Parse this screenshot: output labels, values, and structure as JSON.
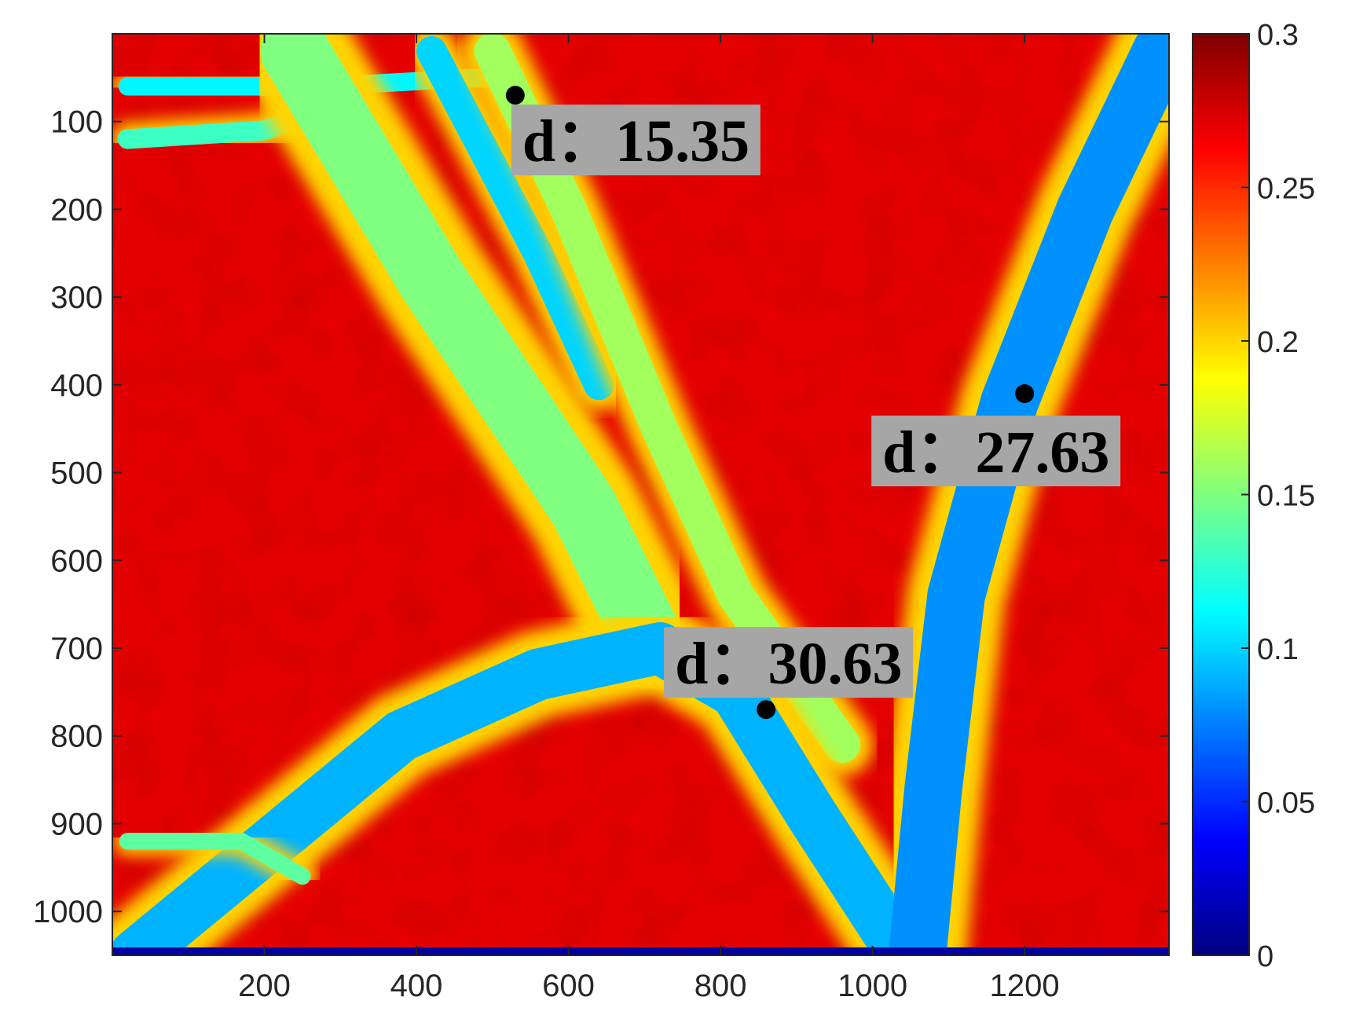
{
  "chart_data": {
    "type": "heatmap",
    "x_ticks": [
      200,
      400,
      600,
      800,
      1000,
      1200
    ],
    "y_ticks": [
      100,
      200,
      300,
      400,
      500,
      600,
      700,
      800,
      900,
      1000
    ],
    "xlim": [
      0,
      1390
    ],
    "ylim": [
      1050,
      0
    ],
    "y_axis_direction": "reversed (top to bottom)",
    "colormap": "jet",
    "colorbar": {
      "range": [
        0,
        0.3
      ],
      "ticks": [
        "0",
        "0.05",
        "0.1",
        "0.15",
        "0.2",
        "0.25",
        "0.3"
      ],
      "tick_values": [
        0,
        0.05,
        0.1,
        0.15,
        0.2,
        0.25,
        0.3
      ],
      "placement": "right"
    },
    "background_value_approx": 0.27,
    "channel_value_approx": 0.1,
    "channels": [
      {
        "points": [
          [
            20,
            60
          ],
          [
            280,
            60
          ],
          [
            480,
            50
          ]
        ],
        "width": 24,
        "value": 0.11
      },
      {
        "points": [
          [
            20,
            120
          ],
          [
            200,
            110
          ],
          [
            300,
            80
          ]
        ],
        "width": 26,
        "value": 0.13
      },
      {
        "points": [
          [
            240,
            20
          ],
          [
            420,
            280
          ],
          [
            620,
            540
          ],
          [
            700,
            680
          ]
        ],
        "width": 90,
        "value": 0.15
      },
      {
        "points": [
          [
            420,
            20
          ],
          [
            560,
            250
          ],
          [
            640,
            400
          ]
        ],
        "width": 40,
        "value": 0.1
      },
      {
        "points": [
          [
            500,
            20
          ],
          [
            600,
            200
          ],
          [
            720,
            450
          ],
          [
            820,
            640
          ],
          [
            960,
            810
          ]
        ],
        "width": 48,
        "value": 0.16
      },
      {
        "points": [
          [
            30,
            1050
          ],
          [
            170,
            950
          ],
          [
            380,
            800
          ],
          [
            560,
            730
          ],
          [
            720,
            700
          ],
          [
            820,
            750
          ],
          [
            920,
            890
          ],
          [
            1040,
            1050
          ]
        ],
        "width": 68,
        "value": 0.09
      },
      {
        "points": [
          [
            1380,
            20
          ],
          [
            1280,
            200
          ],
          [
            1180,
            420
          ],
          [
            1110,
            640
          ],
          [
            1080,
            860
          ],
          [
            1060,
            1040
          ]
        ],
        "width": 76,
        "value": 0.08
      },
      {
        "points": [
          [
            20,
            920
          ],
          [
            170,
            920
          ],
          [
            250,
            960
          ]
        ],
        "width": 22,
        "value": 0.14
      }
    ],
    "annotations": [
      {
        "label": "d：",
        "value": "15.35",
        "point_x": 530,
        "point_y": 70
      },
      {
        "label": "d：",
        "value": "27.63",
        "point_x": 1200,
        "point_y": 410
      },
      {
        "label": "d：",
        "value": "30.63",
        "point_x": 860,
        "point_y": 770
      }
    ],
    "title": "",
    "xlabel": "",
    "ylabel": ""
  }
}
